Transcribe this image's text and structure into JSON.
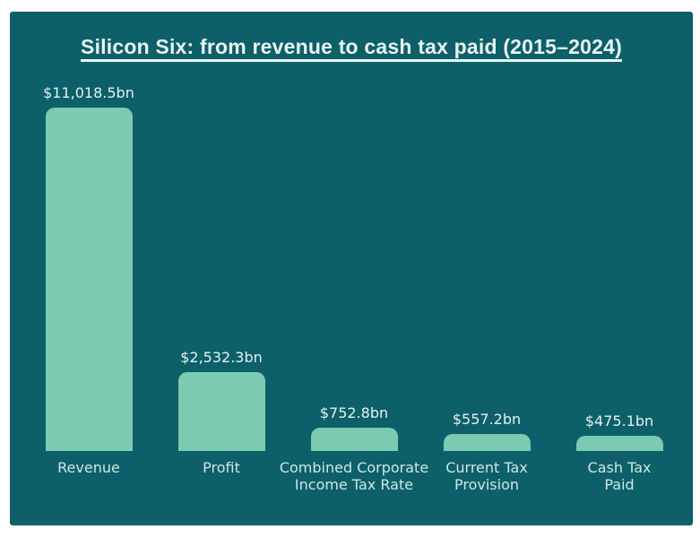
{
  "page": {
    "background_color": "#ffffff"
  },
  "chart_data": {
    "type": "bar",
    "title": "Silicon Six: from revenue to cash tax paid (2015–2024)",
    "categories": [
      "Revenue",
      "Profit",
      "Combined Corporate\nIncome Tax Rate",
      "Current Tax\nProvision",
      "Cash Tax\nPaid"
    ],
    "values": [
      11018.5,
      2532.3,
      752.8,
      557.2,
      475.1
    ],
    "value_labels": [
      "$11,018.5bn",
      "$2,532.3bn",
      "$752.8bn",
      "$557.2bn",
      "$475.1bn"
    ],
    "unit": "$bn",
    "ylim": [
      0,
      11018.5
    ],
    "grid": false,
    "legend": false,
    "panel_color": "#0d5f6a",
    "bar_color": "#7dcab2",
    "title_color": "#eaf6f3",
    "value_label_color": "#e4f2ee",
    "category_label_color": "#cde8e2"
  }
}
